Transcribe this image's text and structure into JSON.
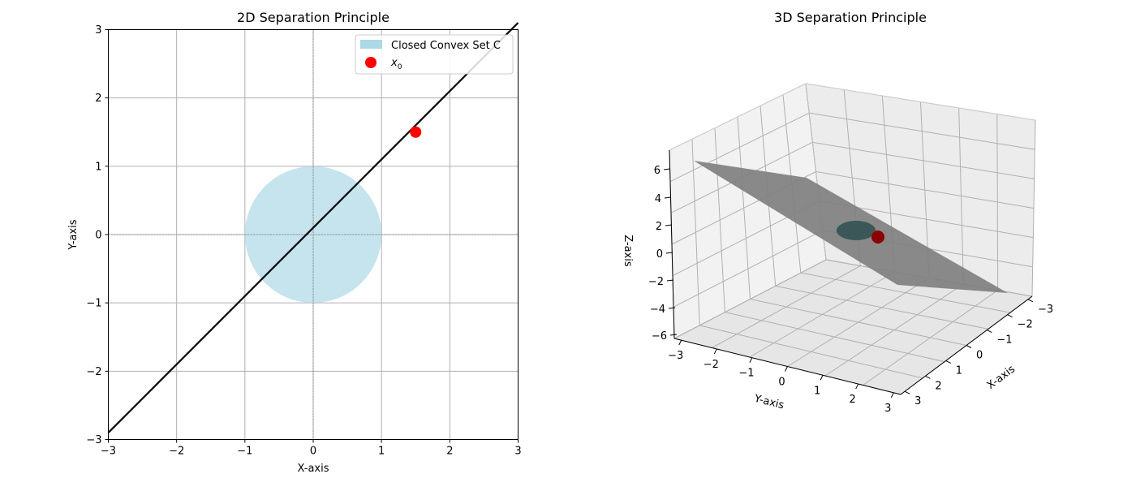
{
  "chart_data": [
    {
      "type": "scatter",
      "title": "2D Separation Principle",
      "xlabel": "X-axis",
      "ylabel": "Y-axis",
      "xlim": [
        -3,
        3
      ],
      "ylim": [
        -3,
        3
      ],
      "xticks": [
        -3,
        -2,
        -1,
        0,
        1,
        2,
        3
      ],
      "yticks": [
        -3,
        -2,
        -1,
        0,
        1,
        2,
        3
      ],
      "grid": true,
      "legend_position": "top-right",
      "convex_set": {
        "label": "Closed Convex Set C",
        "shape": "disk",
        "center": [
          0,
          0
        ],
        "radius": 1,
        "color": "#add8e6"
      },
      "point": {
        "label": "x0",
        "x": 1.5,
        "y": 1.5,
        "color": "#ff0000"
      },
      "separating_line": {
        "x": [
          -3,
          3
        ],
        "y": [
          -2.9,
          3.1
        ],
        "color": "#000000"
      }
    },
    {
      "type": "surface3d",
      "title": "3D Separation Principle",
      "xlabel": "X-axis",
      "ylabel": "Y-axis",
      "zlabel": "Z-axis",
      "xlim": [
        -3,
        3
      ],
      "ylim": [
        -3,
        3
      ],
      "zlim": [
        -6,
        6
      ],
      "xticks": [
        -3,
        -2,
        -1,
        0,
        1,
        2,
        3
      ],
      "yticks": [
        -3,
        -2,
        -1,
        0,
        1,
        2,
        3
      ],
      "zticks": [
        -6,
        -4,
        -2,
        0,
        2,
        4,
        6
      ],
      "plane_color": "#808080",
      "sphere_color": "#2f4f4f",
      "point_color": "#8b0000"
    }
  ],
  "tick_labels": {
    "left_x": [
      "−3",
      "−2",
      "−1",
      "0",
      "1",
      "2",
      "3"
    ],
    "left_y": [
      "−3",
      "−2",
      "−1",
      "0",
      "1",
      "2",
      "3"
    ],
    "right_z": [
      "−6",
      "−4",
      "−2",
      "0",
      "2",
      "4",
      "6"
    ],
    "right_y": [
      "−3",
      "−2",
      "−1",
      "0",
      "1",
      "2",
      "3"
    ],
    "right_x": [
      "−3",
      "−2",
      "−1",
      "0",
      "1",
      "2",
      "3"
    ]
  }
}
